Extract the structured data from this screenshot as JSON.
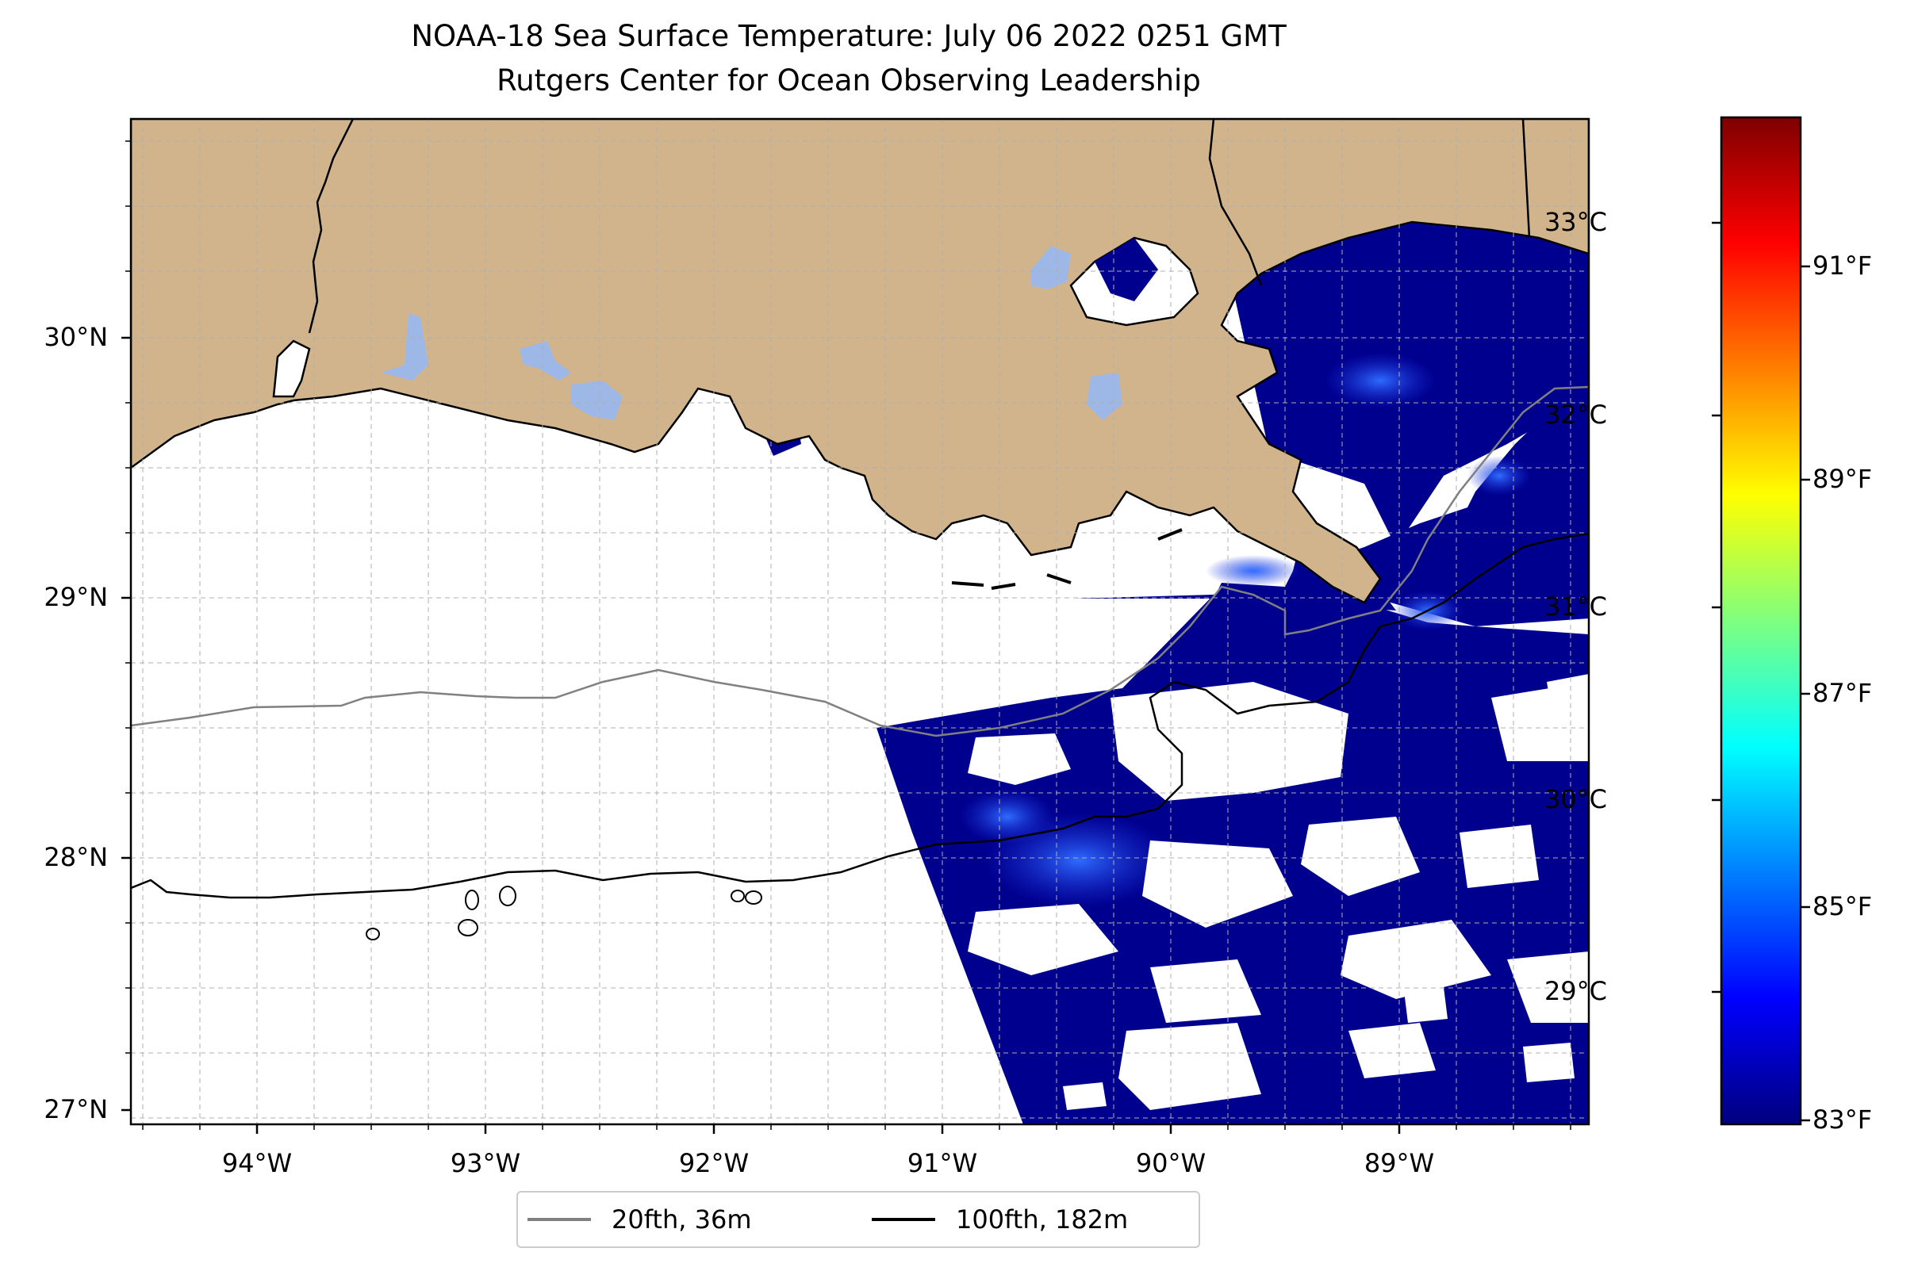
{
  "title": {
    "line1": "NOAA-18 Sea Surface Temperature: July 06 2022 0251 GMT",
    "line2": "Rutgers Center for Ocean Observing Leadership"
  },
  "map": {
    "lat_ticks": [
      "30°N",
      "29°N",
      "28°N",
      "27°N"
    ],
    "lon_ticks": [
      "94°W",
      "93°W",
      "92°W",
      "91°W",
      "90°W",
      "89°W"
    ],
    "grid": true,
    "land_color": "#d2b48c",
    "lake_color": "#9db8e6",
    "no_data_color": "#ffffff",
    "sst_color_low": "#00008f",
    "sst_color_mid": "#1e3cf0"
  },
  "colorbar": {
    "celsius_ticks": [
      "33°C",
      "32°C",
      "31°C",
      "30°C",
      "29°C"
    ],
    "fahrenheit_ticks": [
      "91°F",
      "89°F",
      "87°F",
      "85°F",
      "83°F"
    ],
    "colormap": "jet",
    "colors": [
      "#00007f",
      "#0000ff",
      "#007fff",
      "#00ffff",
      "#7fff7f",
      "#ffff00",
      "#ff7f00",
      "#ff0000",
      "#7f0000"
    ]
  },
  "legend": {
    "items": [
      {
        "label": "20fth, 36m",
        "color": "#808080"
      },
      {
        "label": "100fth, 182m",
        "color": "#000000"
      }
    ]
  }
}
